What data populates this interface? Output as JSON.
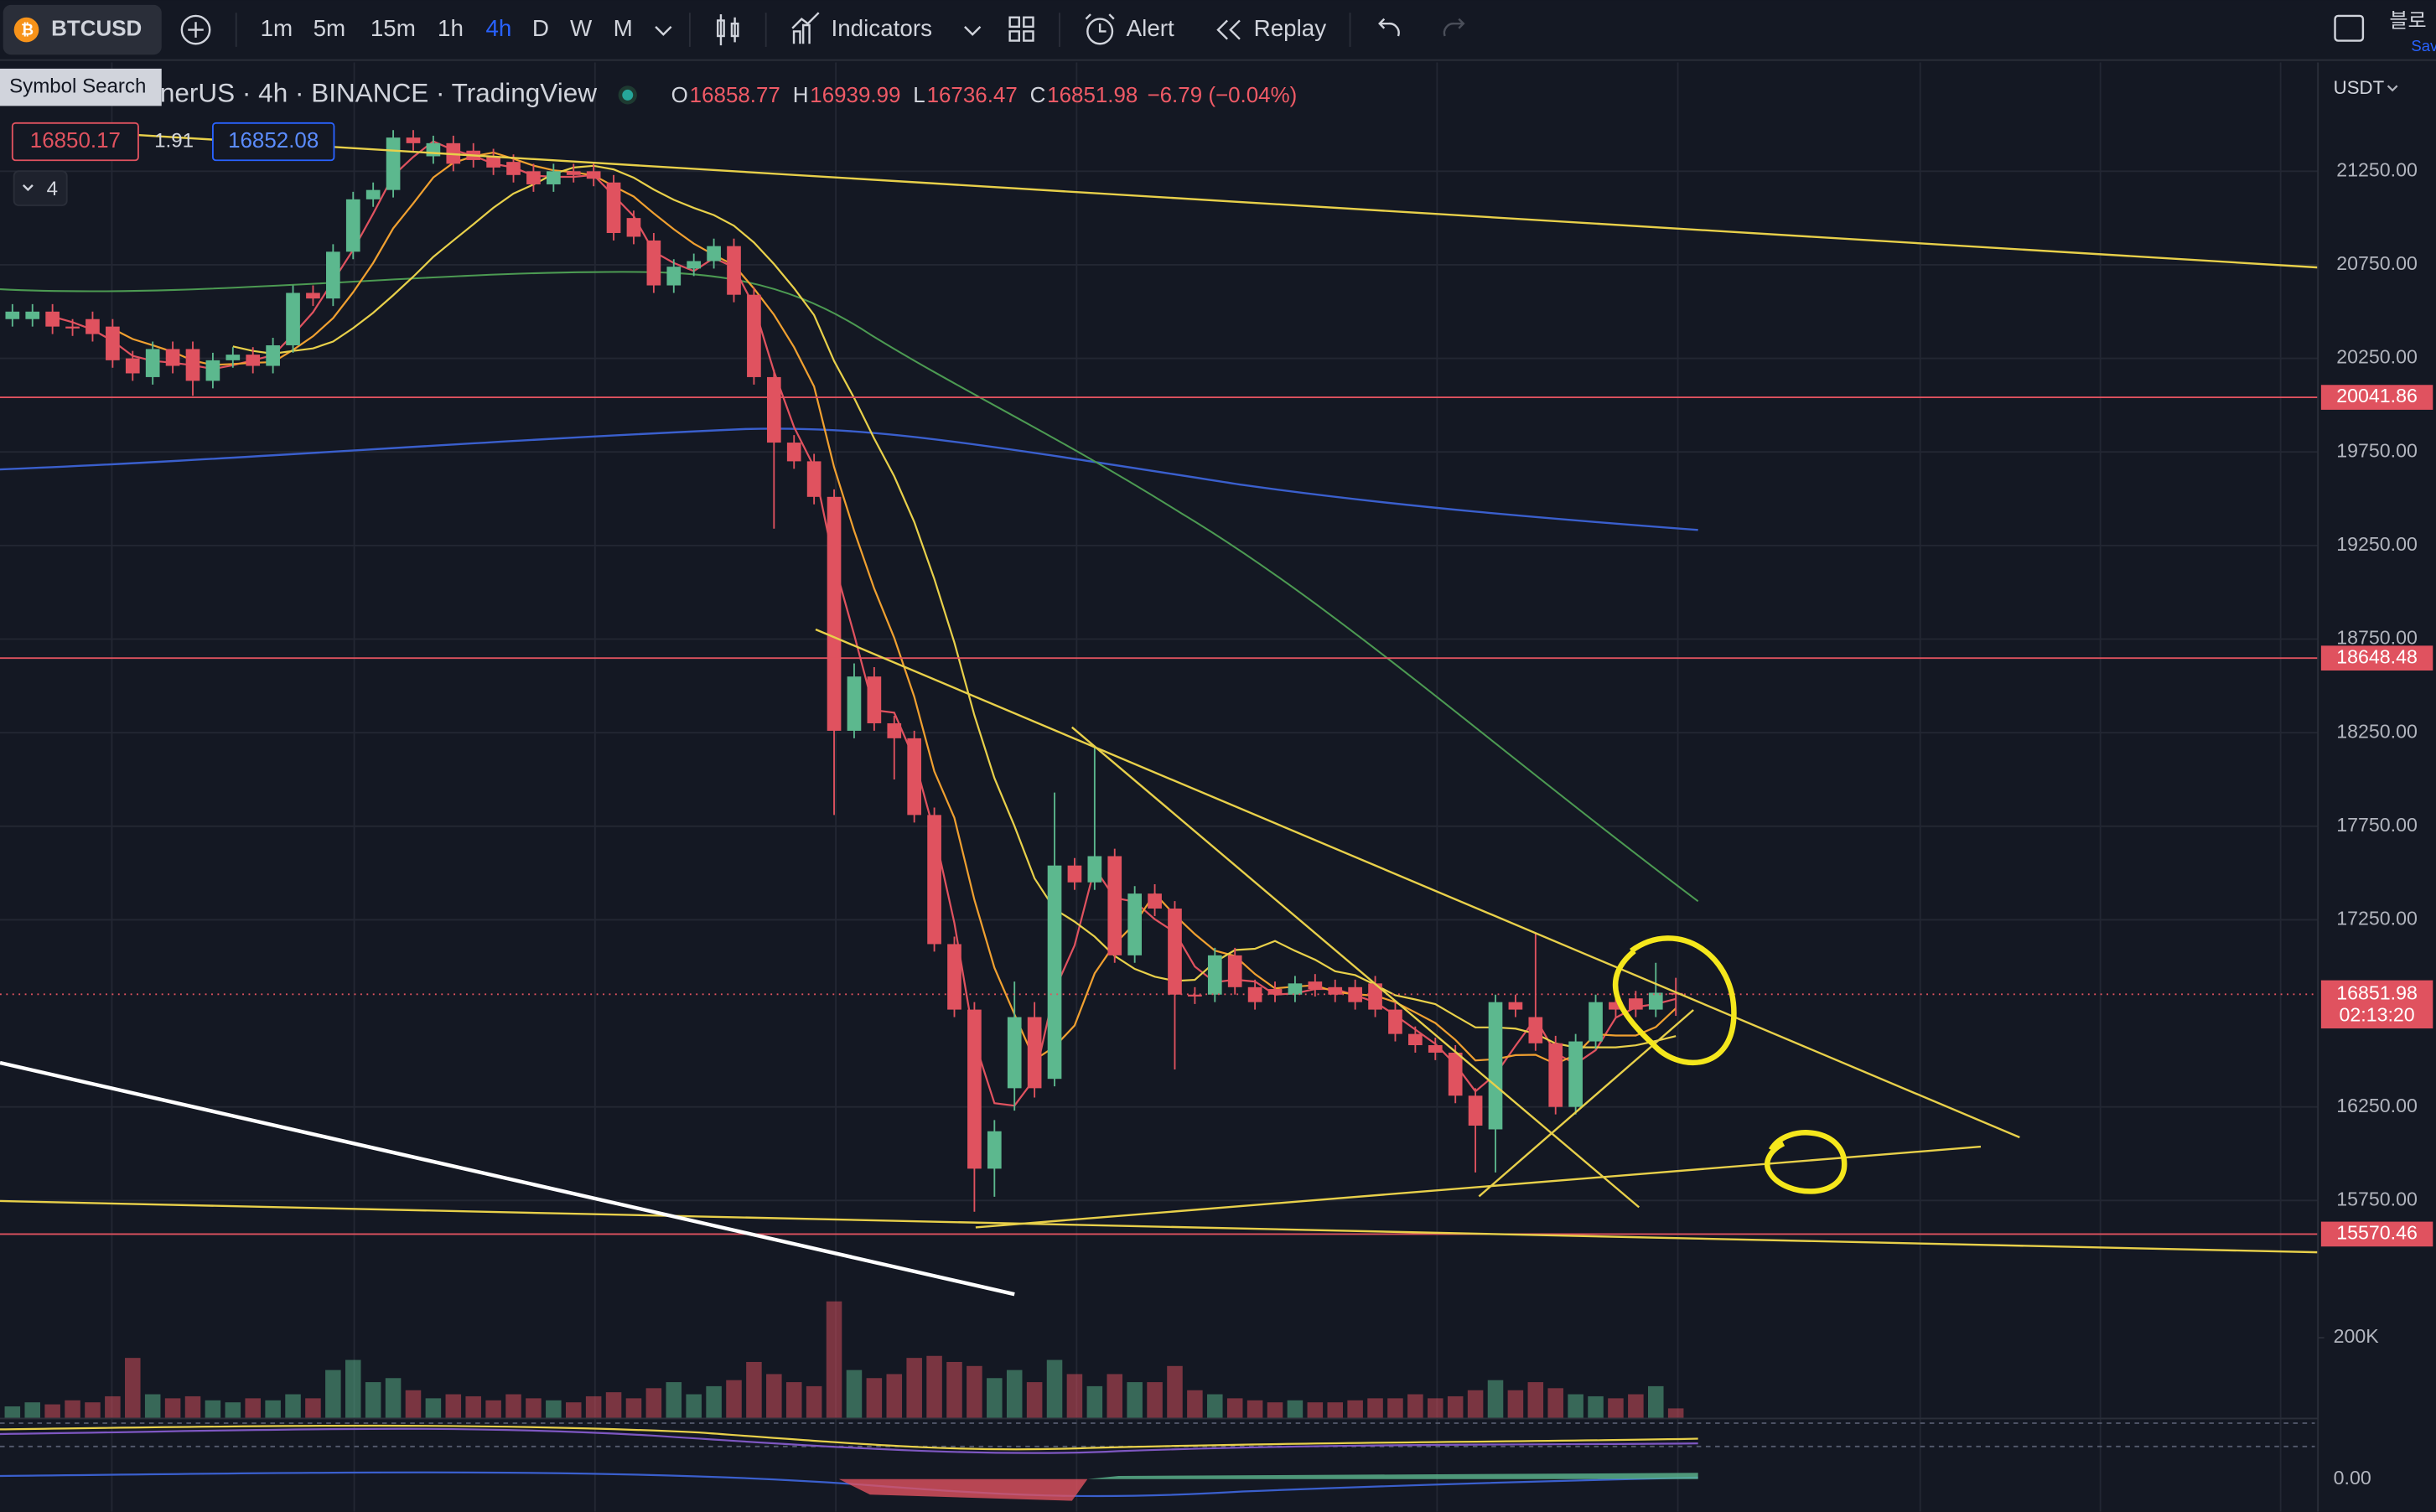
{
  "toolbar": {
    "symbol": "BTCUSD",
    "intervals": [
      "1m",
      "5m",
      "15m",
      "1h",
      "4h",
      "D",
      "W",
      "M"
    ],
    "active_interval": 4,
    "indicators": "Indicators",
    "alert": "Alert",
    "replay": "Replay",
    "tooltip": "Symbol Search",
    "corner": [
      "블로",
      "Sav"
    ]
  },
  "legend": {
    "title": "nerUS · 4h · BINANCE · TradingView",
    "ohlc": [
      {
        "key": "O",
        "value": "16858.77"
      },
      {
        "key": "H",
        "value": "16939.99"
      },
      {
        "key": "L",
        "value": "16736.47"
      },
      {
        "key": "C",
        "value": "16851.98"
      }
    ],
    "change": "−6.79 (−0.04%)",
    "bid": "16850.17",
    "spread": "1.91",
    "ask": "16852.08",
    "collapsed": "4"
  },
  "chart_data": {
    "type": "candlestick",
    "currency": "USDT",
    "up_color": "#5cb88e",
    "down_color": "#e0525f",
    "ylim": [
      14585,
      21790
    ],
    "yticks": [
      {
        "value": 21250,
        "label": "21250.00"
      },
      {
        "value": 20750,
        "label": "20750.00"
      },
      {
        "value": 20250,
        "label": "20250.00"
      },
      {
        "value": 19750,
        "label": "19750.00"
      },
      {
        "value": 19250,
        "label": "19250.00"
      },
      {
        "value": 18750,
        "label": "18750.00"
      },
      {
        "value": 18250,
        "label": "18250.00"
      },
      {
        "value": 17750,
        "label": "17750.00"
      },
      {
        "value": 17250,
        "label": "17250.00"
      },
      {
        "value": 16250,
        "label": "16250.00"
      },
      {
        "value": 15750,
        "label": "15750.00"
      }
    ],
    "grid": true,
    "price_lines": [
      20041.86,
      18648.48,
      15570.46
    ],
    "last_price": 16851.98,
    "countdown": "02:13:20",
    "open": [
      20460,
      20460,
      20500,
      20420,
      20460,
      20420,
      20250,
      20150,
      20300,
      20300,
      20130,
      20240,
      20270,
      20210,
      20320,
      20600,
      20570,
      20820,
      21100,
      21150,
      21430,
      21330,
      21400,
      21360,
      21330,
      21300,
      21250,
      21180,
      21250,
      21250,
      21190,
      21000,
      20880,
      20640,
      20730,
      20770,
      20850,
      20590,
      20150,
      19800,
      19700,
      19510,
      18260,
      18550,
      18300,
      18220,
      17810,
      17120,
      16770,
      15920,
      16350,
      16730,
      16400,
      17540,
      17450,
      17590,
      17060,
      17390,
      17310,
      16850,
      16850,
      17060,
      16890,
      16880,
      16850,
      16920,
      16890,
      16890,
      16910,
      16770,
      16640,
      16580,
      16540,
      16310,
      16130,
      16810,
      16730,
      16590,
      16250,
      16600,
      16810,
      16830,
      16770,
      16858.77
    ],
    "high": [
      20540,
      20540,
      20540,
      20460,
      20500,
      20460,
      20290,
      20340,
      20340,
      20340,
      20280,
      20310,
      20310,
      20360,
      20640,
      20640,
      20860,
      21140,
      21190,
      21470,
      21470,
      21440,
      21440,
      21400,
      21370,
      21340,
      21290,
      21290,
      21290,
      21290,
      21230,
      21040,
      20920,
      20780,
      20810,
      20890,
      20890,
      20630,
      20190,
      19840,
      19740,
      19550,
      18620,
      18600,
      18340,
      18260,
      17850,
      17160,
      16810,
      16180,
      16920,
      16810,
      17930,
      17580,
      18180,
      17630,
      17430,
      17440,
      17350,
      16890,
      17100,
      17100,
      16930,
      16920,
      16950,
      16960,
      16930,
      16930,
      16950,
      16810,
      16680,
      16620,
      16580,
      16350,
      16850,
      16850,
      17180,
      16630,
      16640,
      16850,
      16850,
      16870,
      17020,
      16939.99
    ],
    "low": [
      20420,
      20420,
      20380,
      20370,
      20340,
      20200,
      20130,
      20110,
      20170,
      20050,
      20090,
      20200,
      20170,
      20170,
      20280,
      20530,
      20530,
      20780,
      21060,
      21110,
      21360,
      21290,
      21250,
      21270,
      21230,
      21190,
      21140,
      21140,
      21190,
      21170,
      20880,
      20860,
      20600,
      20600,
      20690,
      20730,
      20550,
      20110,
      19340,
      19660,
      19470,
      17810,
      18220,
      18260,
      18000,
      17770,
      17080,
      16730,
      15690,
      15770,
      16230,
      16300,
      16360,
      17410,
      17410,
      17020,
      17020,
      17270,
      16450,
      16800,
      16810,
      16850,
      16770,
      16810,
      16810,
      16840,
      16810,
      16770,
      16730,
      16600,
      16540,
      16500,
      16270,
      15900,
      15900,
      16730,
      16550,
      16210,
      16210,
      16560,
      16730,
      16730,
      16730,
      16736.47
    ],
    "close": [
      20500,
      20500,
      20420,
      20410,
      20380,
      20240,
      20170,
      20300,
      20210,
      20130,
      20240,
      20270,
      20210,
      20320,
      20600,
      20570,
      20820,
      21100,
      21150,
      21430,
      21400,
      21400,
      21290,
      21310,
      21270,
      21230,
      21180,
      21250,
      21230,
      21210,
      20920,
      20900,
      20640,
      20740,
      20770,
      20850,
      20590,
      20150,
      19800,
      19700,
      19510,
      18260,
      18550,
      18300,
      18220,
      17810,
      17120,
      16770,
      15920,
      16120,
      16730,
      16350,
      17540,
      17450,
      17590,
      17060,
      17390,
      17310,
      16850,
      16840,
      17060,
      16890,
      16810,
      16850,
      16910,
      16880,
      16850,
      16810,
      16770,
      16640,
      16580,
      16540,
      16310,
      16150,
      16810,
      16770,
      16590,
      16250,
      16600,
      16810,
      16770,
      16770,
      16860,
      16851.98
    ],
    "volume": {
      "ylim": [
        0,
        300000
      ],
      "ticks": [
        {
          "value": 200000,
          "label": "200K"
        }
      ],
      "values": [
        30000,
        40000,
        35000,
        45000,
        40000,
        55000,
        150000,
        60000,
        50000,
        55000,
        45000,
        40000,
        50000,
        45000,
        60000,
        50000,
        120000,
        145000,
        90000,
        100000,
        70000,
        50000,
        60000,
        55000,
        45000,
        60000,
        50000,
        45000,
        40000,
        55000,
        65000,
        50000,
        75000,
        90000,
        60000,
        80000,
        95000,
        140000,
        110000,
        90000,
        80000,
        290000,
        120000,
        100000,
        110000,
        150000,
        155000,
        140000,
        130000,
        100000,
        120000,
        90000,
        145000,
        110000,
        80000,
        110000,
        90000,
        90000,
        130000,
        70000,
        60000,
        50000,
        45000,
        40000,
        45000,
        40000,
        40000,
        45000,
        50000,
        50000,
        60000,
        50000,
        55000,
        70000,
        95000,
        70000,
        90000,
        75000,
        60000,
        55000,
        50000,
        60000,
        80000,
        25000
      ]
    },
    "oscillator_label": "0.00"
  }
}
